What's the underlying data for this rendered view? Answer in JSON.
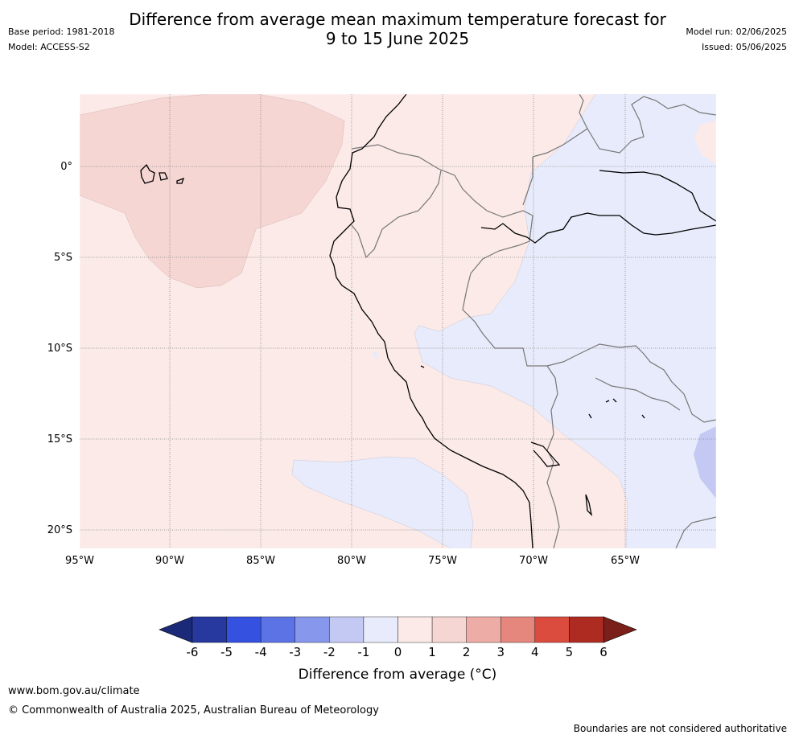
{
  "header": {
    "title_line1": "Difference from average mean maximum temperature forecast for",
    "title_line2": "9 to 15 June 2025",
    "base_period": "Base period: 1981-2018",
    "model": "Model: ACCESS-S2",
    "model_run": "Model run: 02/06/2025",
    "issued": "Issued: 05/06/2025"
  },
  "map": {
    "lat_labels": [
      "0°",
      "5°S",
      "10°S",
      "15°S",
      "20°S"
    ],
    "lon_labels": [
      "95°W",
      "90°W",
      "85°W",
      "80°W",
      "75°W",
      "70°W",
      "65°W"
    ],
    "lon_range": [
      -95,
      -60
    ],
    "lat_range": [
      4,
      -21
    ],
    "grid": true,
    "colors": {
      "plus_0_1": "#fbeae8",
      "plus_1_2": "#f5d6d3",
      "minus_1_0": "#e8ebfb",
      "minus_2_1": "#c3c9f3",
      "coast": "#000000",
      "borders": "#777777"
    }
  },
  "colorbar": {
    "ticks": [
      "-6",
      "-5",
      "-4",
      "-3",
      "-2",
      "-1",
      "0",
      "1",
      "2",
      "3",
      "4",
      "5",
      "6"
    ],
    "colors": [
      "#27399f",
      "#3451e0",
      "#5c73e6",
      "#8798ec",
      "#c3c9f3",
      "#e8ebfb",
      "#fbeae8",
      "#f5d6d3",
      "#edaca6",
      "#e6877e",
      "#db4b3e",
      "#ae2b22"
    ],
    "under_color": "#1b2a78",
    "over_color": "#7a1f1a",
    "label": "Difference from average (°C)"
  },
  "footer": {
    "url": "www.bom.gov.au/climate",
    "copyright": "© Commonwealth of Australia 2025, Australian Bureau of Meteorology",
    "disclaimer": "Boundaries are not considered authoritative"
  }
}
